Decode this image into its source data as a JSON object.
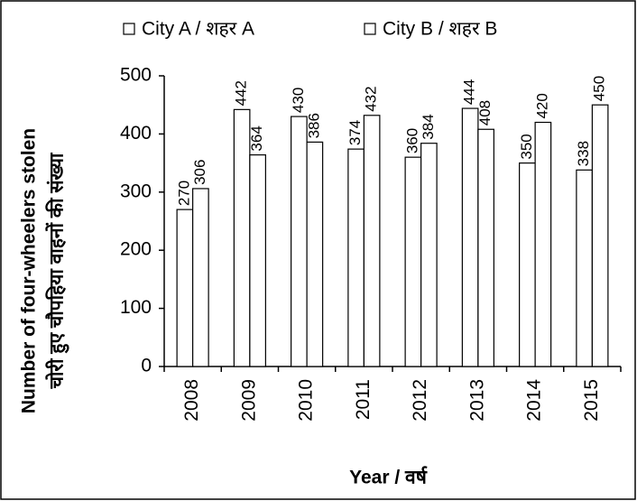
{
  "chart_data": {
    "type": "bar",
    "y_label": [
      "Number of four-wheelers stolen",
      "चोरी हुए चौपहिया वाहनों की संख्या"
    ],
    "x_label": "Year / वर्ष",
    "categories": [
      "2008",
      "2009",
      "2010",
      "2011",
      "2012",
      "2013",
      "2014",
      "2015"
    ],
    "series": [
      {
        "name": "City A / शहर A",
        "color": "#ffffff",
        "values": [
          270,
          442,
          430,
          374,
          360,
          444,
          350,
          338
        ]
      },
      {
        "name": "City B / शहर B",
        "color": "#ffffff",
        "values": [
          306,
          364,
          386,
          432,
          384,
          408,
          420,
          450
        ]
      }
    ],
    "ylim": [
      0,
      500
    ],
    "yticks": [
      0,
      100,
      200,
      300,
      400,
      500
    ],
    "legend": "top"
  }
}
